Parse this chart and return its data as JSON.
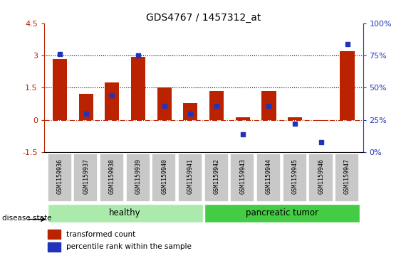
{
  "title": "GDS4767 / 1457312_at",
  "samples": [
    "GSM1159936",
    "GSM1159937",
    "GSM1159938",
    "GSM1159939",
    "GSM1159940",
    "GSM1159941",
    "GSM1159942",
    "GSM1159943",
    "GSM1159944",
    "GSM1159945",
    "GSM1159946",
    "GSM1159947"
  ],
  "red_values": [
    2.85,
    1.2,
    1.75,
    2.95,
    1.5,
    0.8,
    1.35,
    0.12,
    1.35,
    0.12,
    -0.05,
    3.2
  ],
  "blue_pct": [
    76,
    30,
    44,
    75,
    36,
    30,
    36,
    14,
    36,
    22,
    8,
    84
  ],
  "ylim_left": [
    -1.5,
    4.5
  ],
  "ylim_right": [
    0,
    100
  ],
  "hlines_dotted": [
    1.5,
    3.0
  ],
  "hline_dashdot": 0,
  "healthy_count": 6,
  "tumor_count": 6,
  "healthy_color": "#aaeaaa",
  "tumor_color": "#44cc44",
  "bar_color": "#BB2200",
  "blue_color": "#2233BB",
  "gray_box_color": "#C8C8C8",
  "zero_line_color": "#BB2200",
  "legend_red": "transformed count",
  "legend_blue": "percentile rank within the sample",
  "label_disease": "disease state",
  "label_healthy": "healthy",
  "label_tumor": "pancreatic tumor",
  "right_ytick_labels": [
    "0%",
    "25%",
    "50%",
    "75%",
    "100%"
  ],
  "right_yticks": [
    0,
    25,
    50,
    75,
    100
  ],
  "left_ytick_labels": [
    "-1.5",
    "0",
    "1.5",
    "3",
    "4.5"
  ],
  "left_yticks": [
    -1.5,
    0,
    1.5,
    3.0,
    4.5
  ]
}
